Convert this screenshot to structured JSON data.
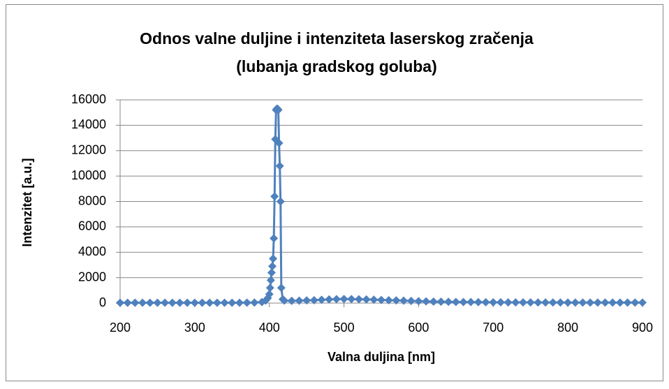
{
  "chart_data": {
    "type": "scatter-line",
    "title": [
      "Odnos valne duljine i intenziteta laserskog zračenja",
      "(lubanja gradskog goluba)"
    ],
    "xlabel": "Valna duljina [nm]",
    "ylabel": "Intenzitet [a.u.]",
    "x": [
      200,
      210,
      220,
      230,
      240,
      250,
      260,
      270,
      280,
      290,
      300,
      310,
      320,
      330,
      340,
      350,
      360,
      370,
      380,
      390,
      395,
      398,
      400,
      401,
      402,
      403,
      404,
      405,
      406,
      407,
      408,
      409,
      410,
      411,
      412,
      413,
      414,
      415,
      416,
      418,
      420,
      430,
      440,
      450,
      460,
      470,
      480,
      490,
      500,
      510,
      520,
      530,
      540,
      550,
      560,
      570,
      580,
      590,
      600,
      610,
      620,
      630,
      640,
      650,
      660,
      670,
      680,
      690,
      700,
      710,
      720,
      730,
      740,
      750,
      760,
      770,
      780,
      790,
      800,
      810,
      820,
      830,
      840,
      850,
      860,
      870,
      880,
      890,
      900
    ],
    "values": [
      30,
      30,
      30,
      30,
      30,
      30,
      30,
      30,
      30,
      30,
      30,
      30,
      30,
      30,
      30,
      30,
      30,
      35,
      40,
      80,
      200,
      400,
      700,
      1200,
      1800,
      2400,
      2900,
      3500,
      5100,
      8400,
      12900,
      15200,
      15300,
      15300,
      15200,
      12600,
      10800,
      8000,
      1200,
      300,
      200,
      180,
      190,
      210,
      230,
      260,
      290,
      310,
      320,
      315,
      305,
      290,
      270,
      250,
      230,
      210,
      190,
      170,
      150,
      135,
      120,
      110,
      100,
      90,
      85,
      80,
      75,
      70,
      65,
      60,
      58,
      56,
      54,
      52,
      50,
      48,
      46,
      45,
      44,
      43,
      42,
      41,
      40,
      40,
      40,
      40,
      40,
      40,
      40
    ],
    "color": "#4f81bd",
    "xlim": [
      200,
      900
    ],
    "xticks": [
      200,
      300,
      400,
      500,
      600,
      700,
      800,
      900
    ],
    "ylim": [
      0,
      16000
    ],
    "yticks": [
      0,
      2000,
      4000,
      6000,
      8000,
      10000,
      12000,
      14000,
      16000
    ],
    "grid": true
  }
}
